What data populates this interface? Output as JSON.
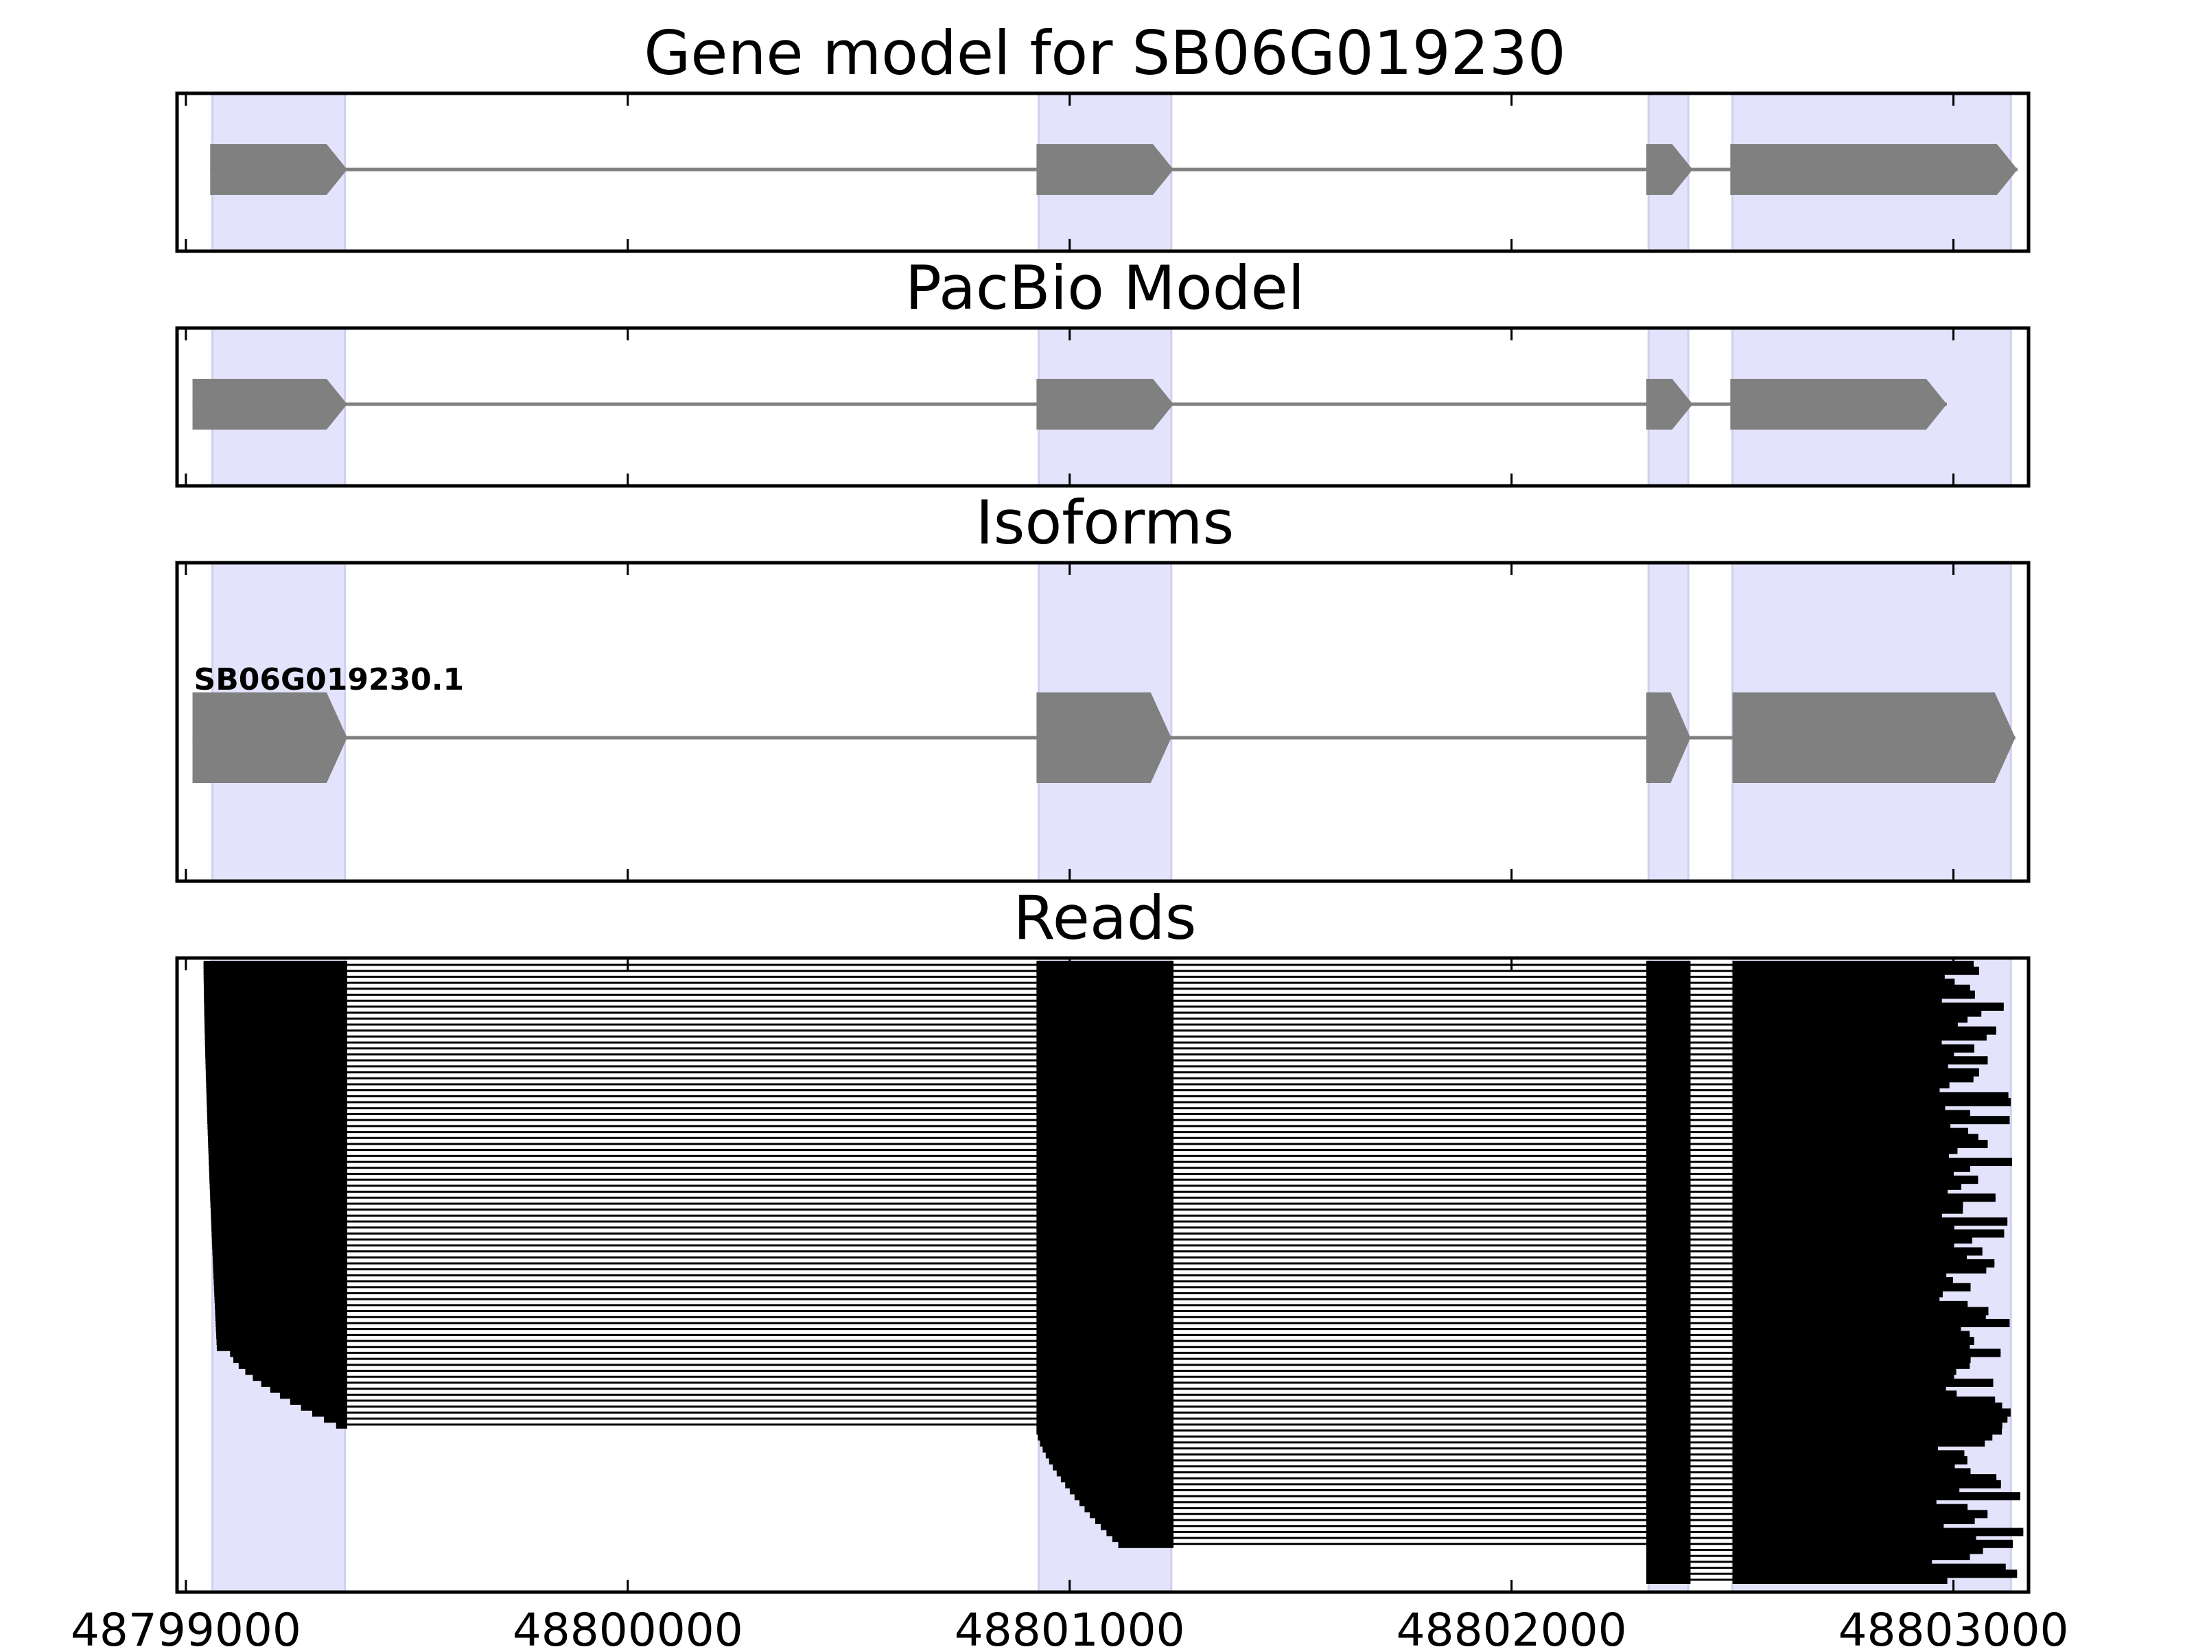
{
  "chart_data": {
    "type": "gene-track",
    "colors": {
      "exon_shade": "#e3e3fb",
      "exon_fill": "#808080",
      "intron_line": "#808080",
      "read_color": "#000000",
      "axis": "#000000"
    },
    "x_range": [
      48798980,
      48803170
    ],
    "x_ticks": [
      {
        "value": 48799000,
        "label": "48799000"
      },
      {
        "value": 48800000,
        "label": "48800000"
      },
      {
        "value": 48801000,
        "label": "48801000"
      },
      {
        "value": 48802000,
        "label": "48802000"
      },
      {
        "value": 48803000,
        "label": "48803000"
      }
    ],
    "exon_regions": [
      [
        48799060,
        48799360
      ],
      [
        48800930,
        48801230
      ],
      [
        48802310,
        48802400
      ],
      [
        48802500,
        48803130
      ]
    ],
    "panels": [
      {
        "id": "gene-model",
        "title": "Gene model for SB06G019230",
        "models": [
          {
            "label": "",
            "exons": [
              [
                48799055,
                48799365
              ],
              [
                48800925,
                48801235
              ],
              [
                48802305,
                48802410
              ],
              [
                48802495,
                48803145
              ]
            ]
          }
        ]
      },
      {
        "id": "pacbio-model",
        "title": "PacBio Model",
        "models": [
          {
            "label": "",
            "exons": [
              [
                48799015,
                48799365
              ],
              [
                48800925,
                48801235
              ],
              [
                48802305,
                48802410
              ],
              [
                48802495,
                48802985
              ]
            ]
          }
        ]
      },
      {
        "id": "isoforms",
        "title": "Isoforms",
        "models": [
          {
            "label": "SB06G019230.1",
            "exons": [
              [
                48799015,
                48799365
              ],
              [
                48800925,
                48801230
              ],
              [
                48802305,
                48802405
              ],
              [
                48802500,
                48803140
              ]
            ]
          }
        ]
      },
      {
        "id": "reads",
        "title": "Reads",
        "read_count": 104,
        "read_exon_ends": {
          "exon1_end": 48799365,
          "exon2": [
            48800925,
            48801235
          ],
          "exon3": [
            48802305,
            48802405
          ],
          "exon4_start": 48802500
        },
        "read_groups": [
          {
            "count": 65,
            "start_exon": 1,
            "start_from": 48799040,
            "start_to": 48799070,
            "end_min": 48802960,
            "end_max": 48803135
          },
          {
            "count": 13,
            "start_exon": 1,
            "start_from": 48799100,
            "start_to": 48799340,
            "end_min": 48802960,
            "end_max": 48803135
          },
          {
            "count": 20,
            "start_exon": 2,
            "start_from": 48800925,
            "start_to": 48801110,
            "end_min": 48802960,
            "end_max": 48803160
          },
          {
            "count": 6,
            "start_exon": 3,
            "start_from": 48802305,
            "start_to": 48802305,
            "end_min": 48802920,
            "end_max": 48803170
          }
        ]
      }
    ]
  }
}
